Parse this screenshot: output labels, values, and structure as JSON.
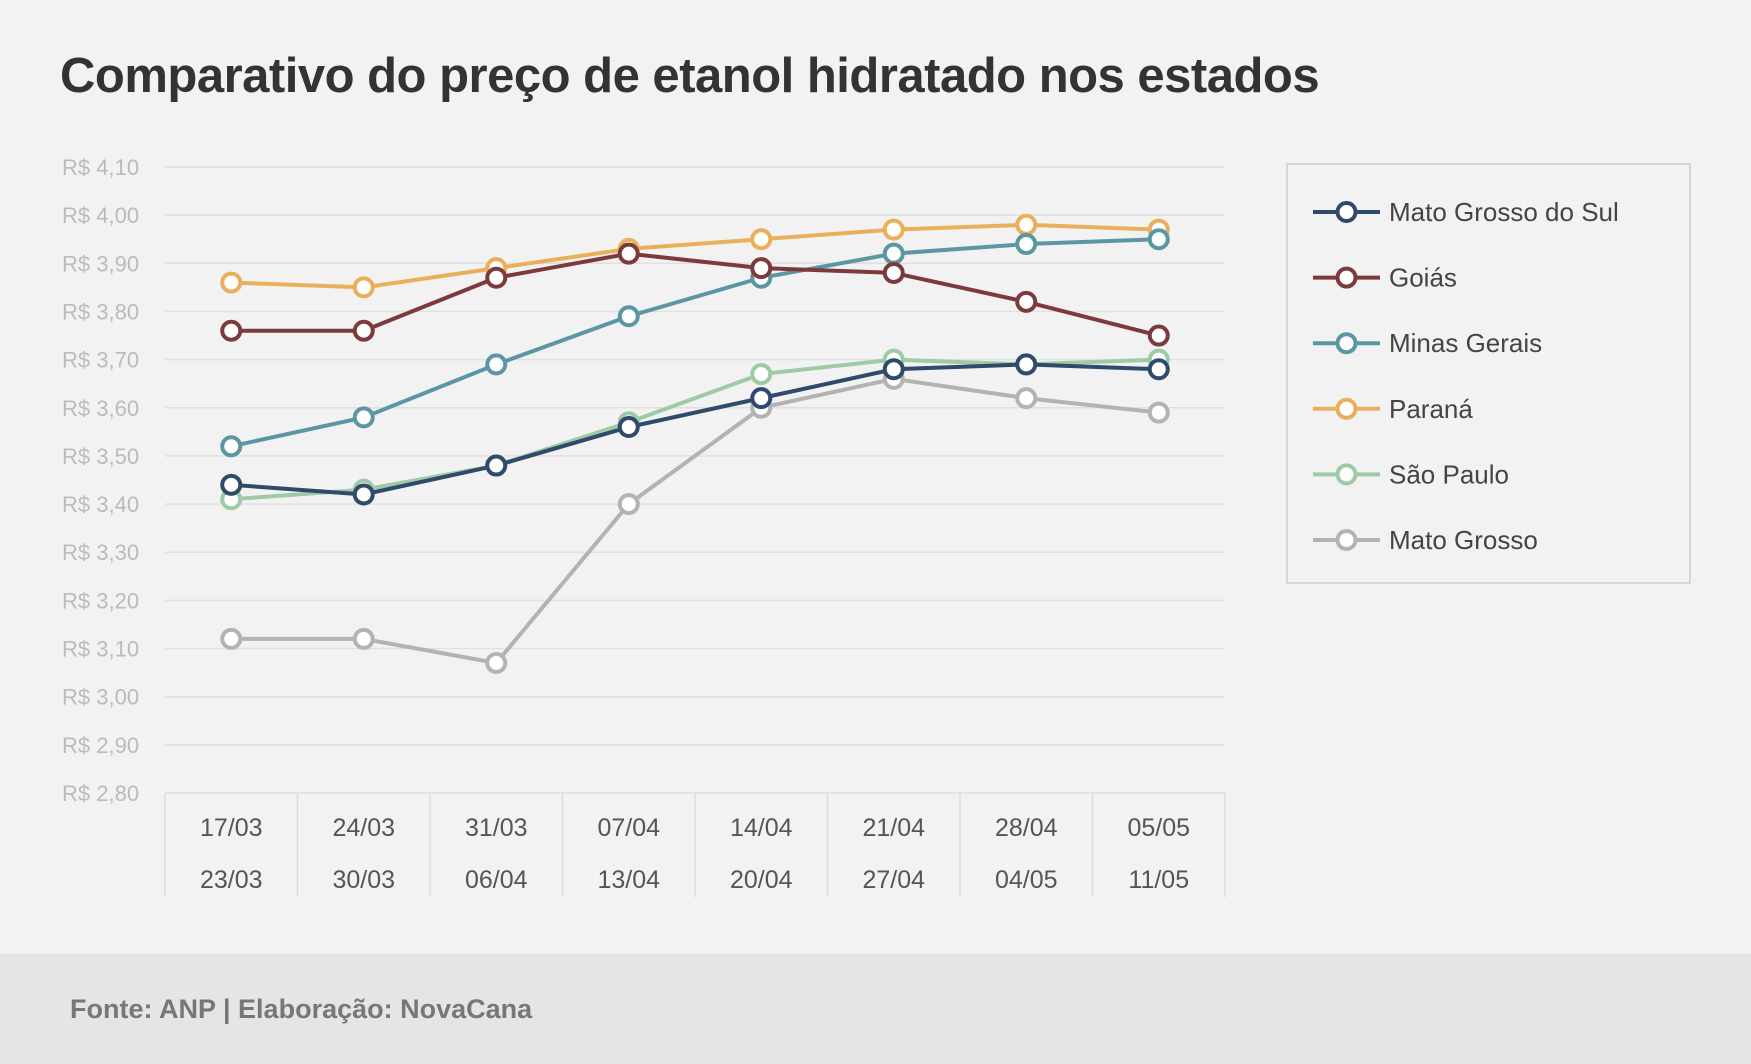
{
  "chart_data": {
    "type": "line",
    "title": "Comparativo do preço de etanol hidratado nos estados",
    "xlabel": "",
    "ylabel": "",
    "categories": [
      {
        "start": "17/03",
        "end": "23/03"
      },
      {
        "start": "24/03",
        "end": "30/03"
      },
      {
        "start": "31/03",
        "end": "06/04"
      },
      {
        "start": "07/04",
        "end": "13/04"
      },
      {
        "start": "14/04",
        "end": "20/04"
      },
      {
        "start": "21/04",
        "end": "27/04"
      },
      {
        "start": "28/04",
        "end": "04/05"
      },
      {
        "start": "05/05",
        "end": "11/05"
      }
    ],
    "ylim": [
      2.8,
      4.1
    ],
    "yticks": [
      {
        "value": 4.1,
        "label": "R$ 4,10"
      },
      {
        "value": 4.0,
        "label": "R$ 4,00"
      },
      {
        "value": 3.9,
        "label": "R$ 3,90"
      },
      {
        "value": 3.8,
        "label": "R$ 3,80"
      },
      {
        "value": 3.7,
        "label": "R$ 3,70"
      },
      {
        "value": 3.6,
        "label": "R$ 3,60"
      },
      {
        "value": 3.5,
        "label": "R$ 3,50"
      },
      {
        "value": 3.4,
        "label": "R$ 3,40"
      },
      {
        "value": 3.3,
        "label": "R$ 3,30"
      },
      {
        "value": 3.2,
        "label": "R$ 3,20"
      },
      {
        "value": 3.1,
        "label": "R$ 3,10"
      },
      {
        "value": 3.0,
        "label": "R$ 3,00"
      },
      {
        "value": 2.9,
        "label": "R$ 2,90"
      },
      {
        "value": 2.8,
        "label": "R$ 2,80"
      }
    ],
    "grid": true,
    "legend_position": "right",
    "series": [
      {
        "name": "Mato Grosso do Sul",
        "color": "#2f4a6b",
        "values": [
          3.44,
          3.42,
          3.48,
          3.56,
          3.62,
          3.68,
          3.69,
          3.68
        ]
      },
      {
        "name": "Goiás",
        "color": "#7d3a3c",
        "values": [
          3.76,
          3.76,
          3.87,
          3.92,
          3.89,
          3.88,
          3.82,
          3.75
        ]
      },
      {
        "name": "Minas Gerais",
        "color": "#5b97a3",
        "values": [
          3.52,
          3.58,
          3.69,
          3.79,
          3.87,
          3.92,
          3.94,
          3.95
        ]
      },
      {
        "name": "Paraná",
        "color": "#eaaf5a",
        "values": [
          3.86,
          3.85,
          3.89,
          3.93,
          3.95,
          3.97,
          3.98,
          3.97
        ]
      },
      {
        "name": "São Paulo",
        "color": "#9ecba5",
        "values": [
          3.41,
          3.43,
          3.48,
          3.57,
          3.67,
          3.7,
          3.69,
          3.7
        ]
      },
      {
        "name": "Mato Grosso",
        "color": "#b3b3b3",
        "values": [
          3.12,
          3.12,
          3.07,
          3.4,
          3.6,
          3.66,
          3.62,
          3.59
        ]
      }
    ]
  },
  "footer": {
    "source": "Fonte: ANP | Elaboração: NovaCana"
  }
}
